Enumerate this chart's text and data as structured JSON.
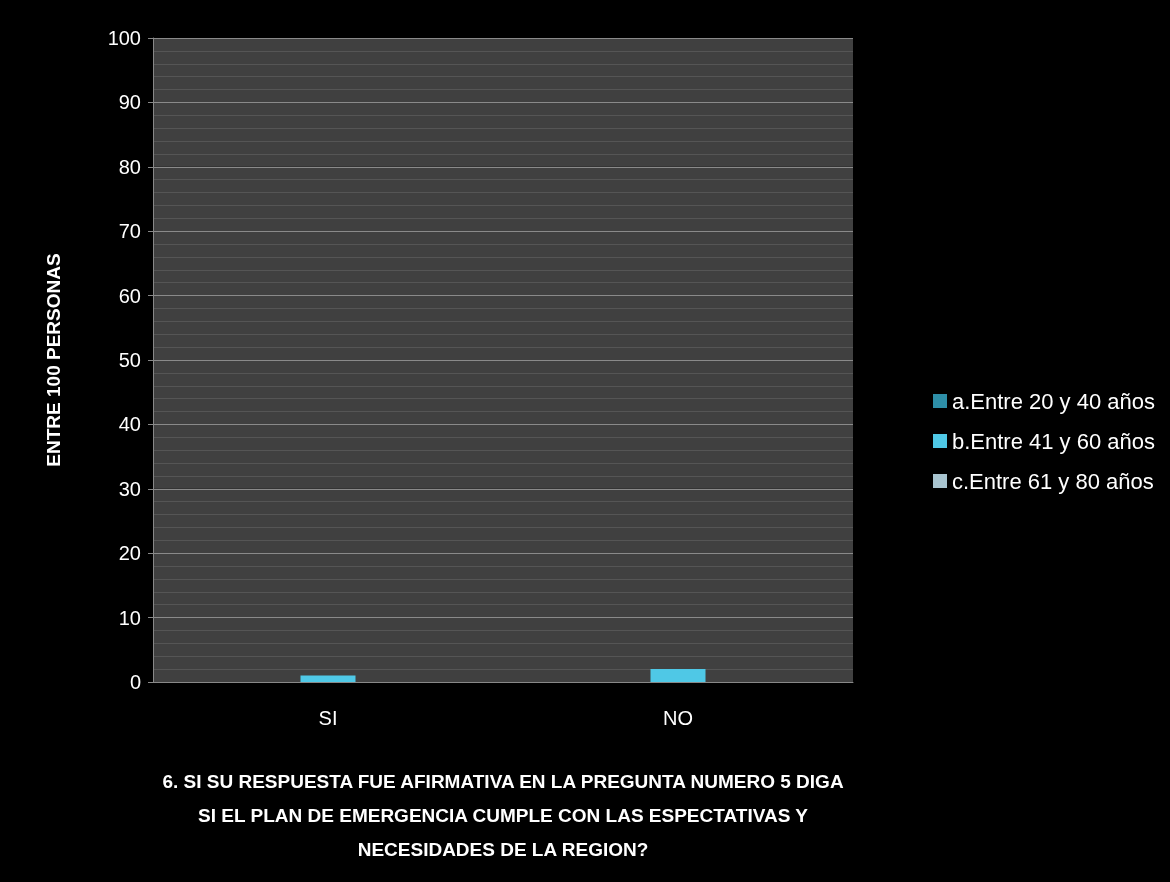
{
  "chart_data": {
    "type": "bar",
    "xlabel": "6. SI SU RESPUESTA FUE AFIRMATIVA EN LA PREGUNTA NUMERO 5 DIGA\nSI EL PLAN DE EMERGENCIA CUMPLE CON LAS ESPECTATIVAS Y\nNECESIDADES DE LA REGION?",
    "ylabel": "ENTRE 100 PERSONAS",
    "categories": [
      "SI",
      "NO"
    ],
    "series": [
      {
        "name": "a.Entre 20 y 40 años",
        "color": "#2e8fa8",
        "values": [
          0,
          0
        ]
      },
      {
        "name": "b.Entre 41 y 60 años",
        "color": "#4fc8e6",
        "values": [
          1,
          2
        ]
      },
      {
        "name": "c.Entre 61 y 80 años",
        "color": "#a8c4d0",
        "values": [
          0,
          0
        ]
      }
    ],
    "ylim": [
      0,
      100
    ],
    "yticks": [
      0,
      10,
      20,
      30,
      40,
      50,
      60,
      70,
      80,
      90,
      100
    ],
    "grid": "y",
    "legend": "right"
  }
}
